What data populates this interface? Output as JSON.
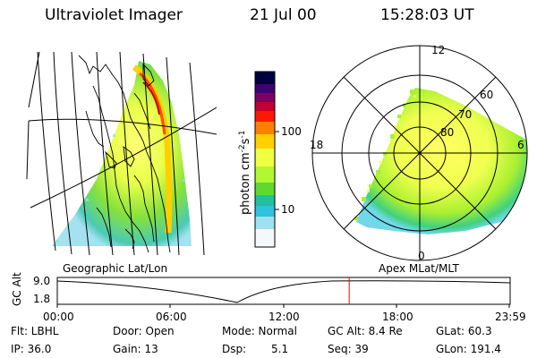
{
  "header": {
    "title": "Ultraviolet Imager",
    "date": "21 Jul 00",
    "time": "15:28:03 UT"
  },
  "colorbar": {
    "label_html": "photon cm<tspan baseline-shift='super' font-size='9'>-2</tspan>s<tspan baseline-shift='super' font-size='9'>-1</tspan>",
    "label_text": "photon cm-2s-1",
    "tick_100": "100",
    "tick_10": "10",
    "colors": [
      "#000040",
      "#300070",
      "#7a0066",
      "#c0003a",
      "#ff2000",
      "#ff8c00",
      "#ffd000",
      "#f5ff50",
      "#b8ff30",
      "#70e000",
      "#30c890",
      "#20b8d8",
      "#90e0f0",
      "#ffffff"
    ]
  },
  "geo_panel": {
    "label": "Geographic Lat/Lon"
  },
  "polar_panel": {
    "label": "Apex MLat/MLT",
    "mlt_12": "12",
    "mlt_18": "18",
    "mlt_6": "6",
    "mlt_0": "0",
    "lat_60": "60",
    "lat_70": "70",
    "lat_80": "80"
  },
  "timeline": {
    "axis_label": "GC Alt",
    "y_top": "9.0",
    "y_bottom": "1.8",
    "ticks": [
      "00:00",
      "06:00",
      "12:00",
      "18:00",
      "23:59"
    ],
    "current_hour": 15.47,
    "marker_color": "#ff0000"
  },
  "footer": {
    "flt": "Flt: LBHL",
    "door": "Door: Open",
    "mode": "Mode: Normal",
    "gcalt": "GC Alt: 8.4 Re",
    "glat": "GLat: 60.3",
    "ip": "IP: 36.0",
    "gain": "Gain: 13",
    "dsp": "Dsp:",
    "dsp_val": "5.1",
    "seq": "Seq: 39",
    "glon": "GLon: 191.4"
  }
}
